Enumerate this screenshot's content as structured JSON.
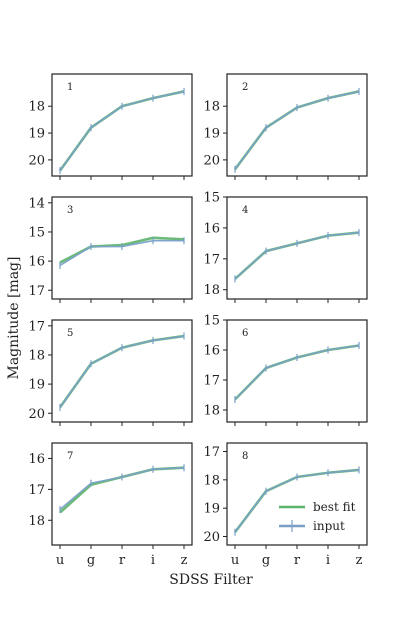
{
  "figure": {
    "ylabel": "Magnitude [mag]",
    "xlabel": "SDSS Filter",
    "legend": {
      "placement": "lower-right of panel 8",
      "entries": [
        {
          "label": "best fit",
          "color": "#5bb36a"
        },
        {
          "label": "input",
          "color": "#7aa0c8"
        }
      ]
    },
    "colors": {
      "best_fit": "#5bb36a",
      "input": "#7aa0c8",
      "overlap": "#5a8a8f"
    }
  },
  "chart_data": [
    {
      "type": "line",
      "panel_label": "1",
      "categories": [
        "u",
        "g",
        "r",
        "i",
        "z"
      ],
      "ylim_inverted": [
        20.6,
        16.8
      ],
      "yticks": [
        18,
        19,
        20
      ],
      "series": [
        {
          "name": "best fit",
          "values": [
            20.4,
            18.8,
            18.0,
            17.7,
            17.45
          ]
        },
        {
          "name": "input",
          "values": [
            20.4,
            18.8,
            18.0,
            17.7,
            17.45
          ]
        }
      ]
    },
    {
      "type": "line",
      "panel_label": "2",
      "categories": [
        "u",
        "g",
        "r",
        "i",
        "z"
      ],
      "ylim_inverted": [
        20.6,
        16.8
      ],
      "yticks": [
        18,
        19,
        20
      ],
      "series": [
        {
          "name": "best fit",
          "values": [
            20.35,
            18.8,
            18.05,
            17.7,
            17.45
          ]
        },
        {
          "name": "input",
          "values": [
            20.35,
            18.8,
            18.05,
            17.7,
            17.45
          ]
        }
      ]
    },
    {
      "type": "line",
      "panel_label": "3",
      "categories": [
        "u",
        "g",
        "r",
        "i",
        "z"
      ],
      "ylim_inverted": [
        17.3,
        13.8
      ],
      "yticks": [
        14,
        15,
        16,
        17
      ],
      "series": [
        {
          "name": "best fit",
          "values": [
            16.05,
            15.5,
            15.45,
            15.2,
            15.25
          ]
        },
        {
          "name": "input",
          "values": [
            16.15,
            15.5,
            15.5,
            15.3,
            15.3
          ]
        }
      ]
    },
    {
      "type": "line",
      "panel_label": "4",
      "categories": [
        "u",
        "g",
        "r",
        "i",
        "z"
      ],
      "ylim_inverted": [
        18.3,
        15.0
      ],
      "yticks": [
        15,
        16,
        17,
        18
      ],
      "series": [
        {
          "name": "best fit",
          "values": [
            17.65,
            16.75,
            16.5,
            16.25,
            16.15
          ]
        },
        {
          "name": "input",
          "values": [
            17.65,
            16.75,
            16.5,
            16.25,
            16.15
          ]
        }
      ]
    },
    {
      "type": "line",
      "panel_label": "5",
      "categories": [
        "u",
        "g",
        "r",
        "i",
        "z"
      ],
      "ylim_inverted": [
        20.3,
        16.8
      ],
      "yticks": [
        17,
        18,
        19,
        20
      ],
      "series": [
        {
          "name": "best fit",
          "values": [
            19.8,
            18.3,
            17.75,
            17.5,
            17.35
          ]
        },
        {
          "name": "input",
          "values": [
            19.8,
            18.3,
            17.75,
            17.5,
            17.35
          ]
        }
      ]
    },
    {
      "type": "line",
      "panel_label": "6",
      "categories": [
        "u",
        "g",
        "r",
        "i",
        "z"
      ],
      "ylim_inverted": [
        18.4,
        15.0
      ],
      "yticks": [
        15,
        16,
        17,
        18
      ],
      "series": [
        {
          "name": "best fit",
          "values": [
            17.65,
            16.6,
            16.25,
            16.0,
            15.85
          ]
        },
        {
          "name": "input",
          "values": [
            17.65,
            16.6,
            16.25,
            16.0,
            15.85
          ]
        }
      ]
    },
    {
      "type": "line",
      "panel_label": "7",
      "categories": [
        "u",
        "g",
        "r",
        "i",
        "z"
      ],
      "ylim_inverted": [
        18.8,
        15.5
      ],
      "yticks": [
        16,
        17,
        18
      ],
      "series": [
        {
          "name": "best fit",
          "values": [
            17.75,
            16.85,
            16.6,
            16.35,
            16.3
          ]
        },
        {
          "name": "input",
          "values": [
            17.65,
            16.8,
            16.6,
            16.35,
            16.3
          ]
        }
      ]
    },
    {
      "type": "line",
      "panel_label": "8",
      "categories": [
        "u",
        "g",
        "r",
        "i",
        "z"
      ],
      "ylim_inverted": [
        20.3,
        16.7
      ],
      "yticks": [
        17,
        18,
        19,
        20
      ],
      "series": [
        {
          "name": "best fit",
          "values": [
            19.85,
            18.4,
            17.9,
            17.75,
            17.65
          ]
        },
        {
          "name": "input",
          "values": [
            19.85,
            18.4,
            17.9,
            17.75,
            17.65
          ]
        }
      ]
    }
  ]
}
